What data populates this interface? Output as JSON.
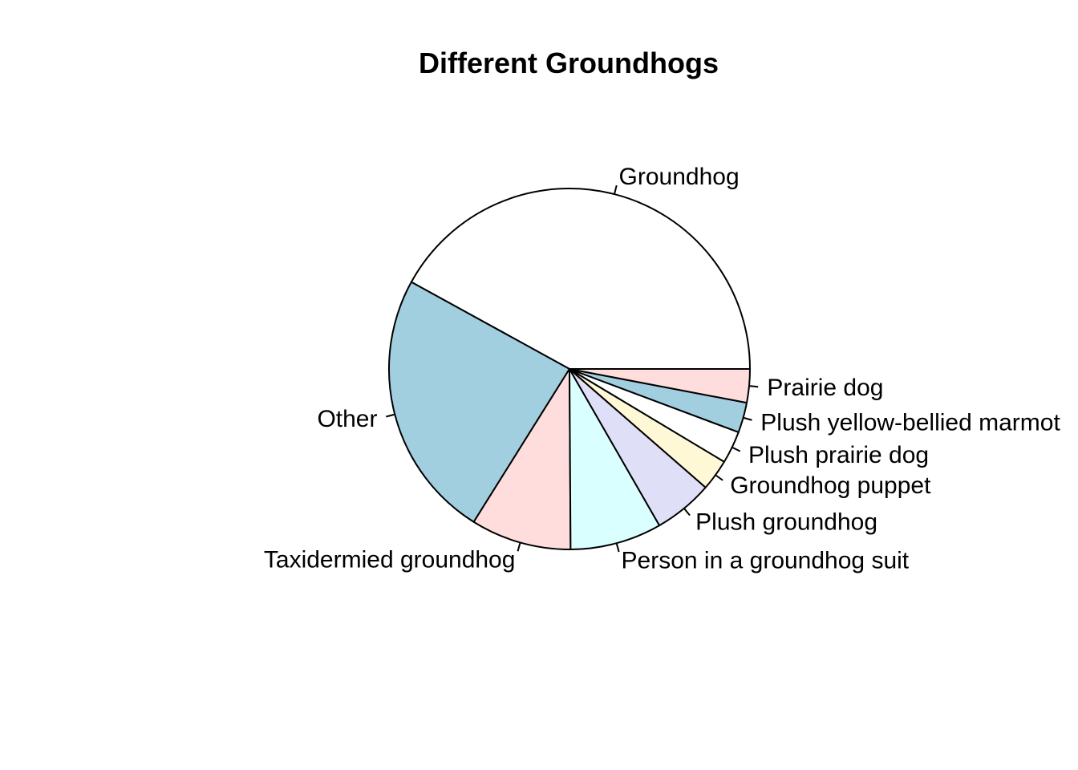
{
  "chart_data": {
    "type": "pie",
    "title": "Different Groundhogs",
    "slices": [
      {
        "label": "Groundhog",
        "value": 42.0,
        "color": "#ffffff"
      },
      {
        "label": "Other",
        "value": 24.1,
        "color": "#a1cfe0"
      },
      {
        "label": "Taxidermied groundhog",
        "value": 9.0,
        "color": "#ffdddd"
      },
      {
        "label": "Person in a groundhog suit",
        "value": 8.2,
        "color": "#daffff"
      },
      {
        "label": "Plush groundhog",
        "value": 5.3,
        "color": "#dfdff8"
      },
      {
        "label": "Groundhog puppet",
        "value": 2.8,
        "color": "#fff8d6"
      },
      {
        "label": "Plush prairie dog",
        "value": 2.9,
        "color": "#ffffff"
      },
      {
        "label": "Plush yellow-bellied marmot",
        "value": 2.7,
        "color": "#a1cfe0"
      },
      {
        "label": "Prairie dog",
        "value": 3.0,
        "color": "#ffdddd"
      }
    ],
    "start": "3 o'clock",
    "direction": "counterclockwise",
    "legend": "none"
  }
}
